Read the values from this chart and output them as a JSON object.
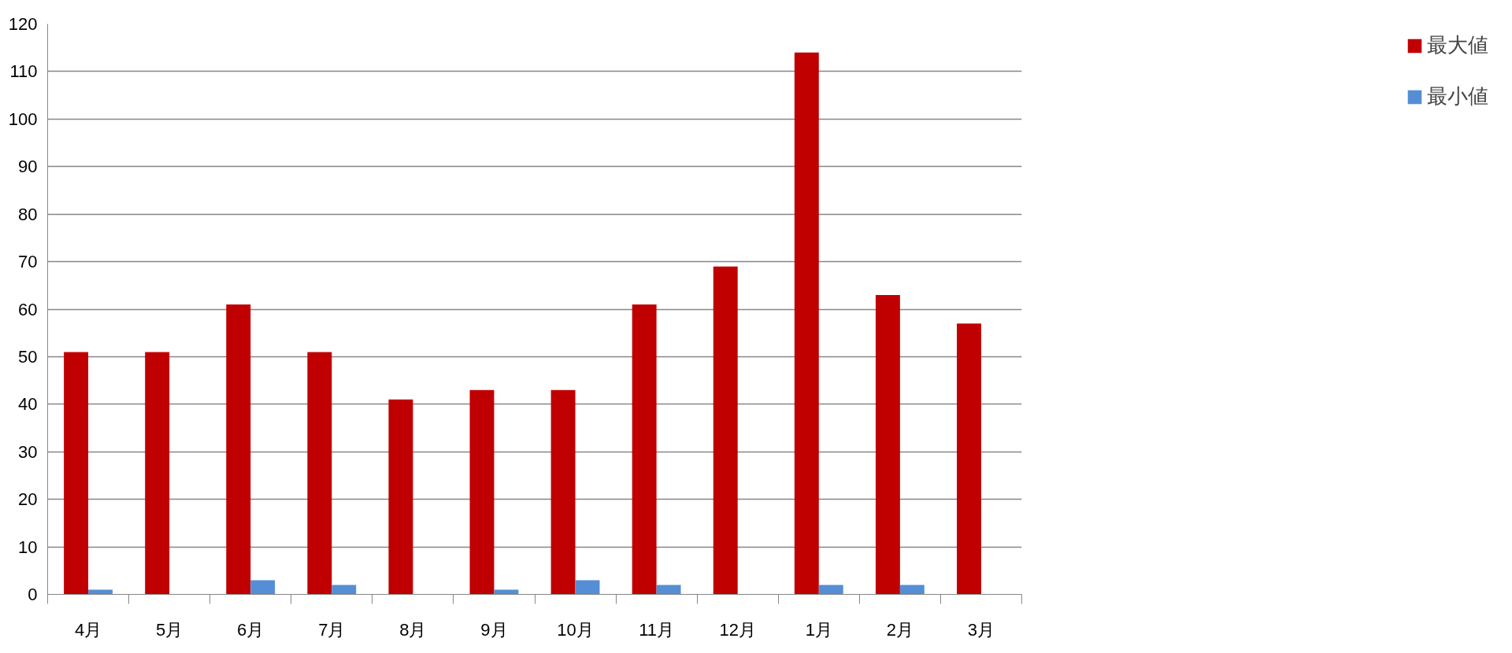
{
  "chart_data": {
    "type": "bar",
    "categories": [
      "4月",
      "5月",
      "6月",
      "7月",
      "8月",
      "9月",
      "10月",
      "11月",
      "12月",
      "1月",
      "2月",
      "3月"
    ],
    "series": [
      {
        "name": "最大値",
        "color": "#c00000",
        "values": [
          51,
          51,
          61,
          51,
          41,
          43,
          43,
          61,
          69,
          114,
          63,
          57
        ]
      },
      {
        "name": "最小値",
        "color": "#558ed5",
        "values": [
          1,
          0,
          3,
          2,
          0,
          1,
          3,
          2,
          0,
          2,
          2,
          0
        ]
      }
    ],
    "ylim": [
      0,
      120
    ],
    "yticks": [
      0,
      10,
      20,
      30,
      40,
      50,
      60,
      70,
      80,
      90,
      100,
      110,
      120
    ],
    "grid": "y",
    "legend": "right"
  }
}
